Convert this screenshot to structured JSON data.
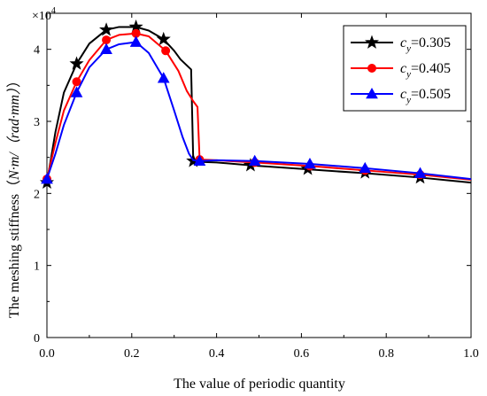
{
  "chart_data": {
    "type": "line",
    "title": "",
    "xlabel": "The value of periodic quantity",
    "ylabel": "The meshing stiffness（N·m/（rad·mm））",
    "ylabel_prefix": "The meshing stiffness（",
    "ylabel_unit": "N·m/（rad·mm）",
    "ylabel_suffix": "）",
    "xlim": [
      0,
      1
    ],
    "ylim": [
      0,
      4.5
    ],
    "y_multiplier_label": "×10",
    "y_multiplier_exponent": "4",
    "xticks": [
      0.0,
      0.2,
      0.4,
      0.6,
      0.8,
      1.0
    ],
    "xtick_labels": [
      "0.0",
      "0.2",
      "0.4",
      "0.6",
      "0.8",
      "1.0"
    ],
    "yticks": [
      0,
      1,
      2,
      3,
      4
    ],
    "ytick_labels": [
      "0",
      "1",
      "2",
      "3",
      "4"
    ],
    "grid": false,
    "legend_position": "top-right",
    "series": [
      {
        "name": "c_y=0.305",
        "legend_sym": "c",
        "legend_sub": "y",
        "legend_val": "=0.305",
        "color": "#000000",
        "marker": "star",
        "x": [
          0,
          0.02,
          0.04,
          0.07,
          0.1,
          0.14,
          0.17,
          0.21,
          0.24,
          0.275,
          0.3,
          0.315,
          0.34,
          0.345,
          0.35,
          0.4,
          0.48,
          0.6,
          0.75,
          0.88,
          1.0
        ],
        "y": [
          2.15,
          2.85,
          3.4,
          3.8,
          4.08,
          4.27,
          4.31,
          4.31,
          4.26,
          4.14,
          3.98,
          3.86,
          3.72,
          2.45,
          2.44,
          2.43,
          2.39,
          2.34,
          2.28,
          2.22,
          2.15
        ],
        "markers_x": [
          0.0,
          0.07,
          0.14,
          0.21,
          0.275,
          0.345,
          0.48,
          0.615,
          0.75,
          0.88
        ],
        "markers_y": [
          2.15,
          3.8,
          4.27,
          4.31,
          4.14,
          2.45,
          2.39,
          2.34,
          2.29,
          2.22
        ]
      },
      {
        "name": "c_y=0.405",
        "legend_sym": "c",
        "legend_sub": "y",
        "legend_val": "=0.405",
        "color": "#ff0000",
        "marker": "circle",
        "x": [
          0,
          0.02,
          0.04,
          0.07,
          0.1,
          0.14,
          0.17,
          0.21,
          0.24,
          0.28,
          0.31,
          0.33,
          0.345,
          0.355,
          0.36,
          0.4,
          0.49,
          0.62,
          0.75,
          0.88,
          1.0
        ],
        "y": [
          2.2,
          2.7,
          3.15,
          3.55,
          3.85,
          4.13,
          4.2,
          4.22,
          4.18,
          3.98,
          3.7,
          3.42,
          3.28,
          3.2,
          2.47,
          2.46,
          2.43,
          2.38,
          2.32,
          2.26,
          2.19
        ],
        "markers_x": [
          0.0,
          0.07,
          0.14,
          0.21,
          0.28,
          0.36,
          0.49,
          0.62,
          0.75,
          0.88
        ],
        "markers_y": [
          2.2,
          3.55,
          4.13,
          4.22,
          3.98,
          2.47,
          2.43,
          2.38,
          2.32,
          2.26
        ]
      },
      {
        "name": "c_y=0.505",
        "legend_sym": "c",
        "legend_sub": "y",
        "legend_val": "=0.505",
        "color": "#0000ff",
        "marker": "triangle",
        "x": [
          0,
          0.02,
          0.04,
          0.07,
          0.1,
          0.14,
          0.17,
          0.21,
          0.24,
          0.275,
          0.3,
          0.32,
          0.335,
          0.345,
          0.36,
          0.4,
          0.49,
          0.62,
          0.75,
          0.88,
          1.0
        ],
        "y": [
          2.2,
          2.55,
          2.95,
          3.4,
          3.75,
          4.0,
          4.07,
          4.1,
          3.95,
          3.6,
          3.15,
          2.78,
          2.55,
          2.46,
          2.45,
          2.46,
          2.45,
          2.41,
          2.35,
          2.28,
          2.2
        ],
        "markers_x": [
          0.0,
          0.07,
          0.14,
          0.21,
          0.275,
          0.36,
          0.49,
          0.62,
          0.75,
          0.88
        ],
        "markers_y": [
          2.2,
          3.4,
          4.0,
          4.1,
          3.6,
          2.45,
          2.45,
          2.41,
          2.35,
          2.28
        ]
      }
    ]
  }
}
